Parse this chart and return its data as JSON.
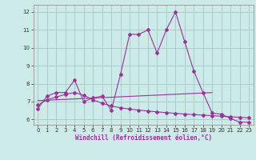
{
  "xlabel": "Windchill (Refroidissement éolien,°C)",
  "background_color": "#cceae7",
  "grid_color": "#aacccc",
  "line_color": "#993399",
  "xlim": [
    -0.5,
    23.5
  ],
  "ylim": [
    5.7,
    12.4
  ],
  "xticks": [
    0,
    1,
    2,
    3,
    4,
    5,
    6,
    7,
    8,
    9,
    10,
    11,
    12,
    13,
    14,
    15,
    16,
    17,
    18,
    19,
    20,
    21,
    22,
    23
  ],
  "yticks": [
    6,
    7,
    8,
    9,
    10,
    11,
    12
  ],
  "curve1_x": [
    0,
    1,
    2,
    3,
    4,
    5,
    6,
    7,
    8,
    9,
    10,
    11,
    12,
    13,
    14,
    15,
    16,
    17,
    18,
    19,
    20,
    21,
    22,
    23
  ],
  "curve1_y": [
    6.6,
    7.3,
    7.5,
    7.5,
    8.2,
    7.0,
    7.2,
    7.3,
    6.5,
    8.5,
    10.75,
    10.75,
    11.0,
    9.7,
    11.0,
    12.0,
    10.35,
    8.7,
    7.5,
    6.35,
    6.3,
    6.05,
    5.85,
    5.85
  ],
  "curve2_x": [
    0,
    1,
    2,
    3,
    4,
    5,
    6,
    7,
    8,
    9,
    10,
    11,
    12,
    13,
    14,
    15,
    16,
    17,
    18,
    19,
    20,
    21,
    22,
    23
  ],
  "curve2_y": [
    6.8,
    7.1,
    7.25,
    7.4,
    7.5,
    7.35,
    7.1,
    6.9,
    6.75,
    6.65,
    6.58,
    6.52,
    6.47,
    6.42,
    6.38,
    6.34,
    6.3,
    6.27,
    6.24,
    6.21,
    6.18,
    6.15,
    6.12,
    6.09
  ],
  "curve3_x": [
    0,
    19
  ],
  "curve3_y": [
    7.05,
    7.5
  ]
}
